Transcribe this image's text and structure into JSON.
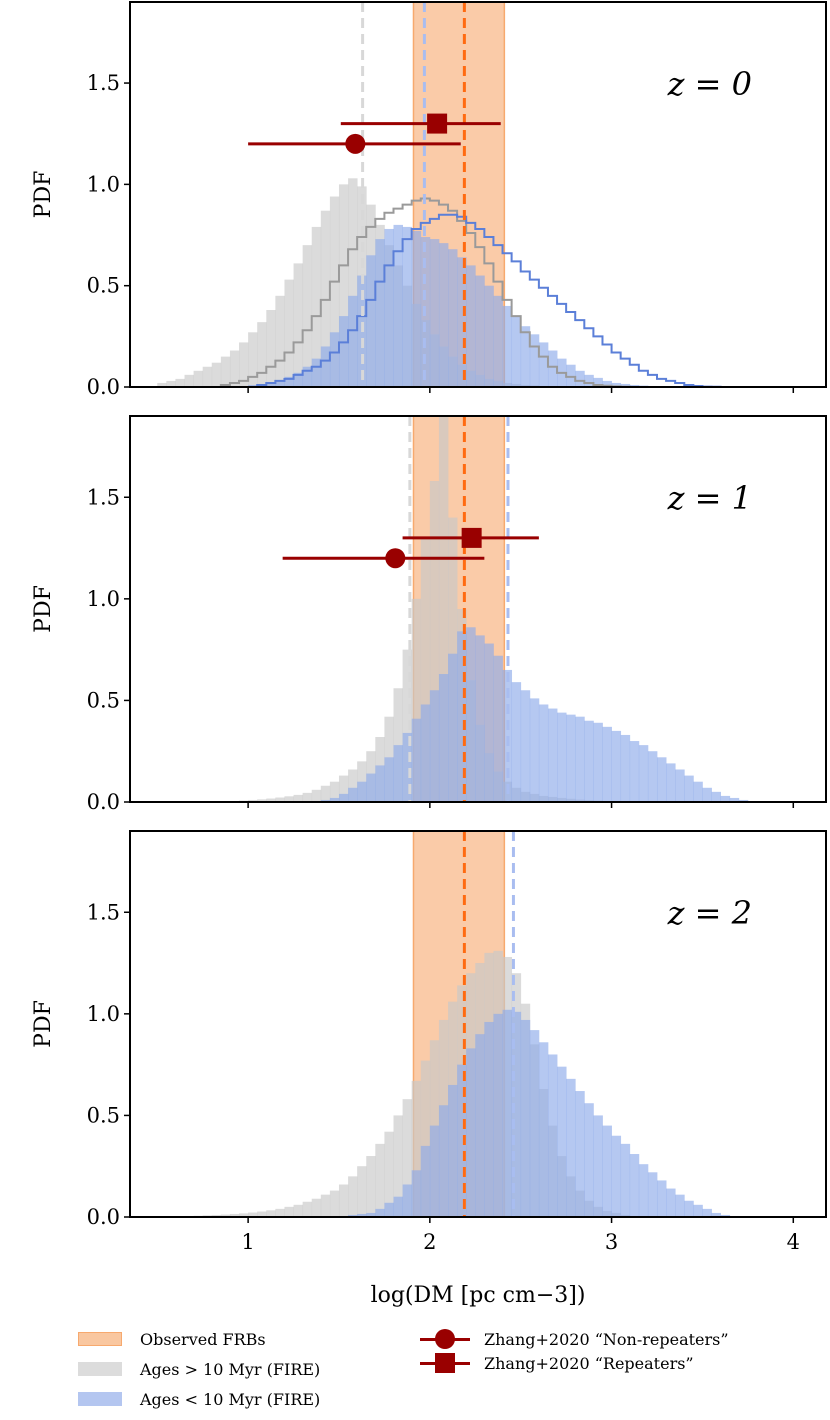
{
  "figure": {
    "xlabel": "log(DM [pc cm−3])",
    "ylabel": "PDF",
    "colors": {
      "observed": "#f7a96e",
      "old": "#c8c8c8",
      "young": "#8eaaea",
      "young_step": "#5b7fd8",
      "old_step": "#9a9a9a",
      "median_obs": "#ff6a10",
      "zhang": "#990000"
    }
  },
  "chart_data": [
    {
      "type": "area",
      "panel_label": "z = 0",
      "xlim": [
        0.35,
        4.18
      ],
      "ylim": [
        0,
        1.9
      ],
      "x_ticks": [
        1,
        2,
        3,
        4
      ],
      "y_ticks": [
        0.0,
        0.5,
        1.0,
        1.5
      ],
      "y_tick_labels": [
        "0.0",
        "0.5",
        "1.0",
        "1.5"
      ],
      "observed_band": [
        1.91,
        2.41
      ],
      "median_lines": {
        "observed": 2.19,
        "old": 1.63,
        "young": 1.97
      },
      "zhang": {
        "non_repeaters": {
          "x": 1.59,
          "xerr": [
            1.0,
            2.17
          ],
          "y": 1.2
        },
        "repeaters": {
          "x": 2.04,
          "xerr": [
            1.51,
            2.39
          ],
          "y": 1.3
        }
      },
      "hist_x0": 0.5,
      "hist_dx": 0.05,
      "series": [
        {
          "name": "Ages > 10 Myr (FIRE)",
          "values": [
            0.02,
            0.03,
            0.04,
            0.06,
            0.08,
            0.1,
            0.12,
            0.15,
            0.18,
            0.22,
            0.27,
            0.32,
            0.38,
            0.45,
            0.53,
            0.61,
            0.7,
            0.79,
            0.87,
            0.94,
            1.0,
            1.03,
            0.99,
            0.9,
            0.8,
            0.7,
            0.6,
            0.5,
            0.41,
            0.33,
            0.26,
            0.2,
            0.15,
            0.11,
            0.08,
            0.06,
            0.04,
            0.03,
            0.02,
            0.015,
            0.01,
            0.008,
            0.005,
            0.003,
            0.002,
            0.001,
            0.001,
            0,
            0,
            0,
            0,
            0,
            0,
            0,
            0,
            0,
            0,
            0,
            0,
            0,
            0,
            0,
            0,
            0,
            0,
            0,
            0,
            0,
            0,
            0
          ]
        },
        {
          "name": "Ages < 10 Myr (FIRE)",
          "values": [
            0,
            0,
            0,
            0,
            0,
            0,
            0,
            0,
            0,
            0.005,
            0.01,
            0.015,
            0.02,
            0.03,
            0.05,
            0.07,
            0.1,
            0.14,
            0.2,
            0.27,
            0.35,
            0.45,
            0.55,
            0.65,
            0.73,
            0.78,
            0.8,
            0.79,
            0.77,
            0.74,
            0.73,
            0.71,
            0.68,
            0.64,
            0.6,
            0.55,
            0.5,
            0.45,
            0.4,
            0.35,
            0.3,
            0.26,
            0.22,
            0.18,
            0.14,
            0.11,
            0.08,
            0.06,
            0.045,
            0.03,
            0.02,
            0.015,
            0.01,
            0.007,
            0.005,
            0.003,
            0.002,
            0.001,
            0,
            0,
            0,
            0,
            0,
            0,
            0,
            0,
            0,
            0,
            0,
            0
          ]
        },
        {
          "name": "old_outline",
          "values": [
            0,
            0,
            0,
            0,
            0,
            0,
            0,
            0.01,
            0.02,
            0.03,
            0.05,
            0.07,
            0.1,
            0.13,
            0.17,
            0.22,
            0.28,
            0.35,
            0.43,
            0.52,
            0.6,
            0.68,
            0.74,
            0.79,
            0.83,
            0.86,
            0.88,
            0.9,
            0.92,
            0.93,
            0.92,
            0.9,
            0.87,
            0.82,
            0.76,
            0.69,
            0.61,
            0.52,
            0.43,
            0.35,
            0.27,
            0.2,
            0.15,
            0.1,
            0.07,
            0.05,
            0.03,
            0.02,
            0.01,
            0.006,
            0.003,
            0.001,
            0,
            0,
            0,
            0,
            0,
            0,
            0,
            0,
            0,
            0,
            0,
            0,
            0,
            0,
            0,
            0,
            0,
            0
          ]
        },
        {
          "name": "young_outline",
          "values": [
            0,
            0,
            0,
            0,
            0,
            0,
            0,
            0,
            0,
            0,
            0,
            0.01,
            0.02,
            0.03,
            0.04,
            0.06,
            0.08,
            0.1,
            0.13,
            0.17,
            0.22,
            0.28,
            0.35,
            0.43,
            0.52,
            0.6,
            0.67,
            0.73,
            0.78,
            0.81,
            0.83,
            0.85,
            0.85,
            0.84,
            0.81,
            0.78,
            0.74,
            0.7,
            0.66,
            0.62,
            0.57,
            0.53,
            0.49,
            0.45,
            0.41,
            0.37,
            0.33,
            0.29,
            0.25,
            0.21,
            0.17,
            0.14,
            0.11,
            0.08,
            0.06,
            0.04,
            0.03,
            0.02,
            0.01,
            0.005,
            0.002,
            0.001,
            0,
            0,
            0,
            0,
            0,
            0,
            0,
            0
          ]
        }
      ]
    },
    {
      "type": "area",
      "panel_label": "z = 1",
      "xlim": [
        0.35,
        4.18
      ],
      "ylim": [
        0,
        1.9
      ],
      "x_ticks": [
        1,
        2,
        3,
        4
      ],
      "y_ticks": [
        0.0,
        0.5,
        1.0,
        1.5
      ],
      "y_tick_labels": [
        "0.0",
        "0.5",
        "1.0",
        "1.5"
      ],
      "observed_band": [
        1.91,
        2.41
      ],
      "median_lines": {
        "observed": 2.19,
        "old": 1.89,
        "young": 2.43
      },
      "zhang": {
        "non_repeaters": {
          "x": 1.81,
          "xerr": [
            1.19,
            2.3
          ],
          "y": 1.2
        },
        "repeaters": {
          "x": 2.23,
          "xerr": [
            1.85,
            2.6
          ],
          "y": 1.3
        }
      },
      "hist_x0": 0.5,
      "hist_dx": 0.05,
      "series": [
        {
          "name": "Ages > 10 Myr (FIRE)",
          "values": [
            0,
            0,
            0,
            0,
            0,
            0,
            0.002,
            0.003,
            0.005,
            0.007,
            0.01,
            0.013,
            0.017,
            0.022,
            0.028,
            0.035,
            0.045,
            0.06,
            0.08,
            0.1,
            0.13,
            0.16,
            0.2,
            0.25,
            0.32,
            0.42,
            0.56,
            0.75,
            1.0,
            1.3,
            1.58,
            1.9,
            1.4,
            0.95,
            0.6,
            0.38,
            0.24,
            0.15,
            0.1,
            0.07,
            0.05,
            0.04,
            0.03,
            0.025,
            0.02,
            0.016,
            0.012,
            0.009,
            0.007,
            0.005,
            0.003,
            0.002,
            0.001,
            0,
            0,
            0,
            0,
            0,
            0,
            0,
            0,
            0,
            0,
            0,
            0,
            0,
            0,
            0,
            0,
            0
          ]
        },
        {
          "name": "Ages < 10 Myr (FIRE)",
          "values": [
            0,
            0,
            0,
            0,
            0,
            0,
            0,
            0,
            0,
            0,
            0,
            0,
            0,
            0,
            0,
            0,
            0,
            0.005,
            0.01,
            0.02,
            0.04,
            0.07,
            0.1,
            0.14,
            0.18,
            0.22,
            0.28,
            0.34,
            0.41,
            0.48,
            0.55,
            0.63,
            0.73,
            0.84,
            0.86,
            0.82,
            0.78,
            0.72,
            0.65,
            0.59,
            0.55,
            0.51,
            0.48,
            0.46,
            0.44,
            0.43,
            0.42,
            0.4,
            0.39,
            0.37,
            0.35,
            0.33,
            0.3,
            0.28,
            0.25,
            0.22,
            0.19,
            0.16,
            0.13,
            0.1,
            0.07,
            0.05,
            0.03,
            0.02,
            0.01,
            0,
            0,
            0,
            0,
            0
          ]
        }
      ]
    },
    {
      "type": "area",
      "panel_label": "z = 2",
      "xlim": [
        0.35,
        4.18
      ],
      "ylim": [
        0,
        1.9
      ],
      "x_ticks": [
        1,
        2,
        3,
        4
      ],
      "y_ticks": [
        0.0,
        0.5,
        1.0,
        1.5
      ],
      "x_tick_labels": [
        "1",
        "2",
        "3",
        "4"
      ],
      "y_tick_labels": [
        "0.0",
        "0.5",
        "1.0",
        "1.5"
      ],
      "observed_band": [
        1.91,
        2.41
      ],
      "median_lines": {
        "observed": 2.19,
        "old": 2.19,
        "young": 2.46
      },
      "hist_x0": 0.5,
      "hist_dx": 0.05,
      "series": [
        {
          "name": "Ages > 10 Myr (FIRE)",
          "values": [
            0.002,
            0.003,
            0.004,
            0.005,
            0.006,
            0.008,
            0.01,
            0.012,
            0.015,
            0.018,
            0.022,
            0.027,
            0.033,
            0.04,
            0.05,
            0.06,
            0.075,
            0.09,
            0.11,
            0.13,
            0.16,
            0.2,
            0.25,
            0.3,
            0.36,
            0.42,
            0.5,
            0.58,
            0.67,
            0.77,
            0.87,
            0.97,
            1.06,
            1.14,
            1.2,
            1.25,
            1.3,
            1.31,
            1.28,
            1.2,
            1.05,
            0.85,
            0.63,
            0.45,
            0.3,
            0.2,
            0.13,
            0.08,
            0.05,
            0.03,
            0.02,
            0.01,
            0.005,
            0.002,
            0,
            0,
            0,
            0,
            0,
            0,
            0,
            0,
            0,
            0,
            0,
            0,
            0,
            0,
            0,
            0
          ]
        },
        {
          "name": "Ages < 10 Myr (FIRE)",
          "values": [
            0,
            0,
            0,
            0,
            0,
            0,
            0,
            0,
            0,
            0,
            0,
            0,
            0,
            0,
            0,
            0,
            0,
            0,
            0,
            0,
            0.005,
            0.01,
            0.015,
            0.02,
            0.04,
            0.07,
            0.1,
            0.16,
            0.23,
            0.35,
            0.45,
            0.55,
            0.65,
            0.75,
            0.83,
            0.9,
            0.96,
            1.0,
            1.02,
            1.01,
            0.97,
            0.92,
            0.86,
            0.8,
            0.74,
            0.68,
            0.62,
            0.56,
            0.5,
            0.45,
            0.4,
            0.36,
            0.31,
            0.26,
            0.22,
            0.18,
            0.14,
            0.11,
            0.08,
            0.06,
            0.04,
            0.02,
            0.01,
            0.005,
            0,
            0,
            0,
            0,
            0,
            0
          ]
        }
      ]
    }
  ],
  "legend": {
    "observed": "Observed FRBs",
    "old": "Ages > 10 Myr (FIRE)",
    "young": "Ages < 10 Myr (FIRE)",
    "non_repeaters": "Zhang+2020 “Non-repeaters”",
    "repeaters": "Zhang+2020 “Repeaters”"
  }
}
